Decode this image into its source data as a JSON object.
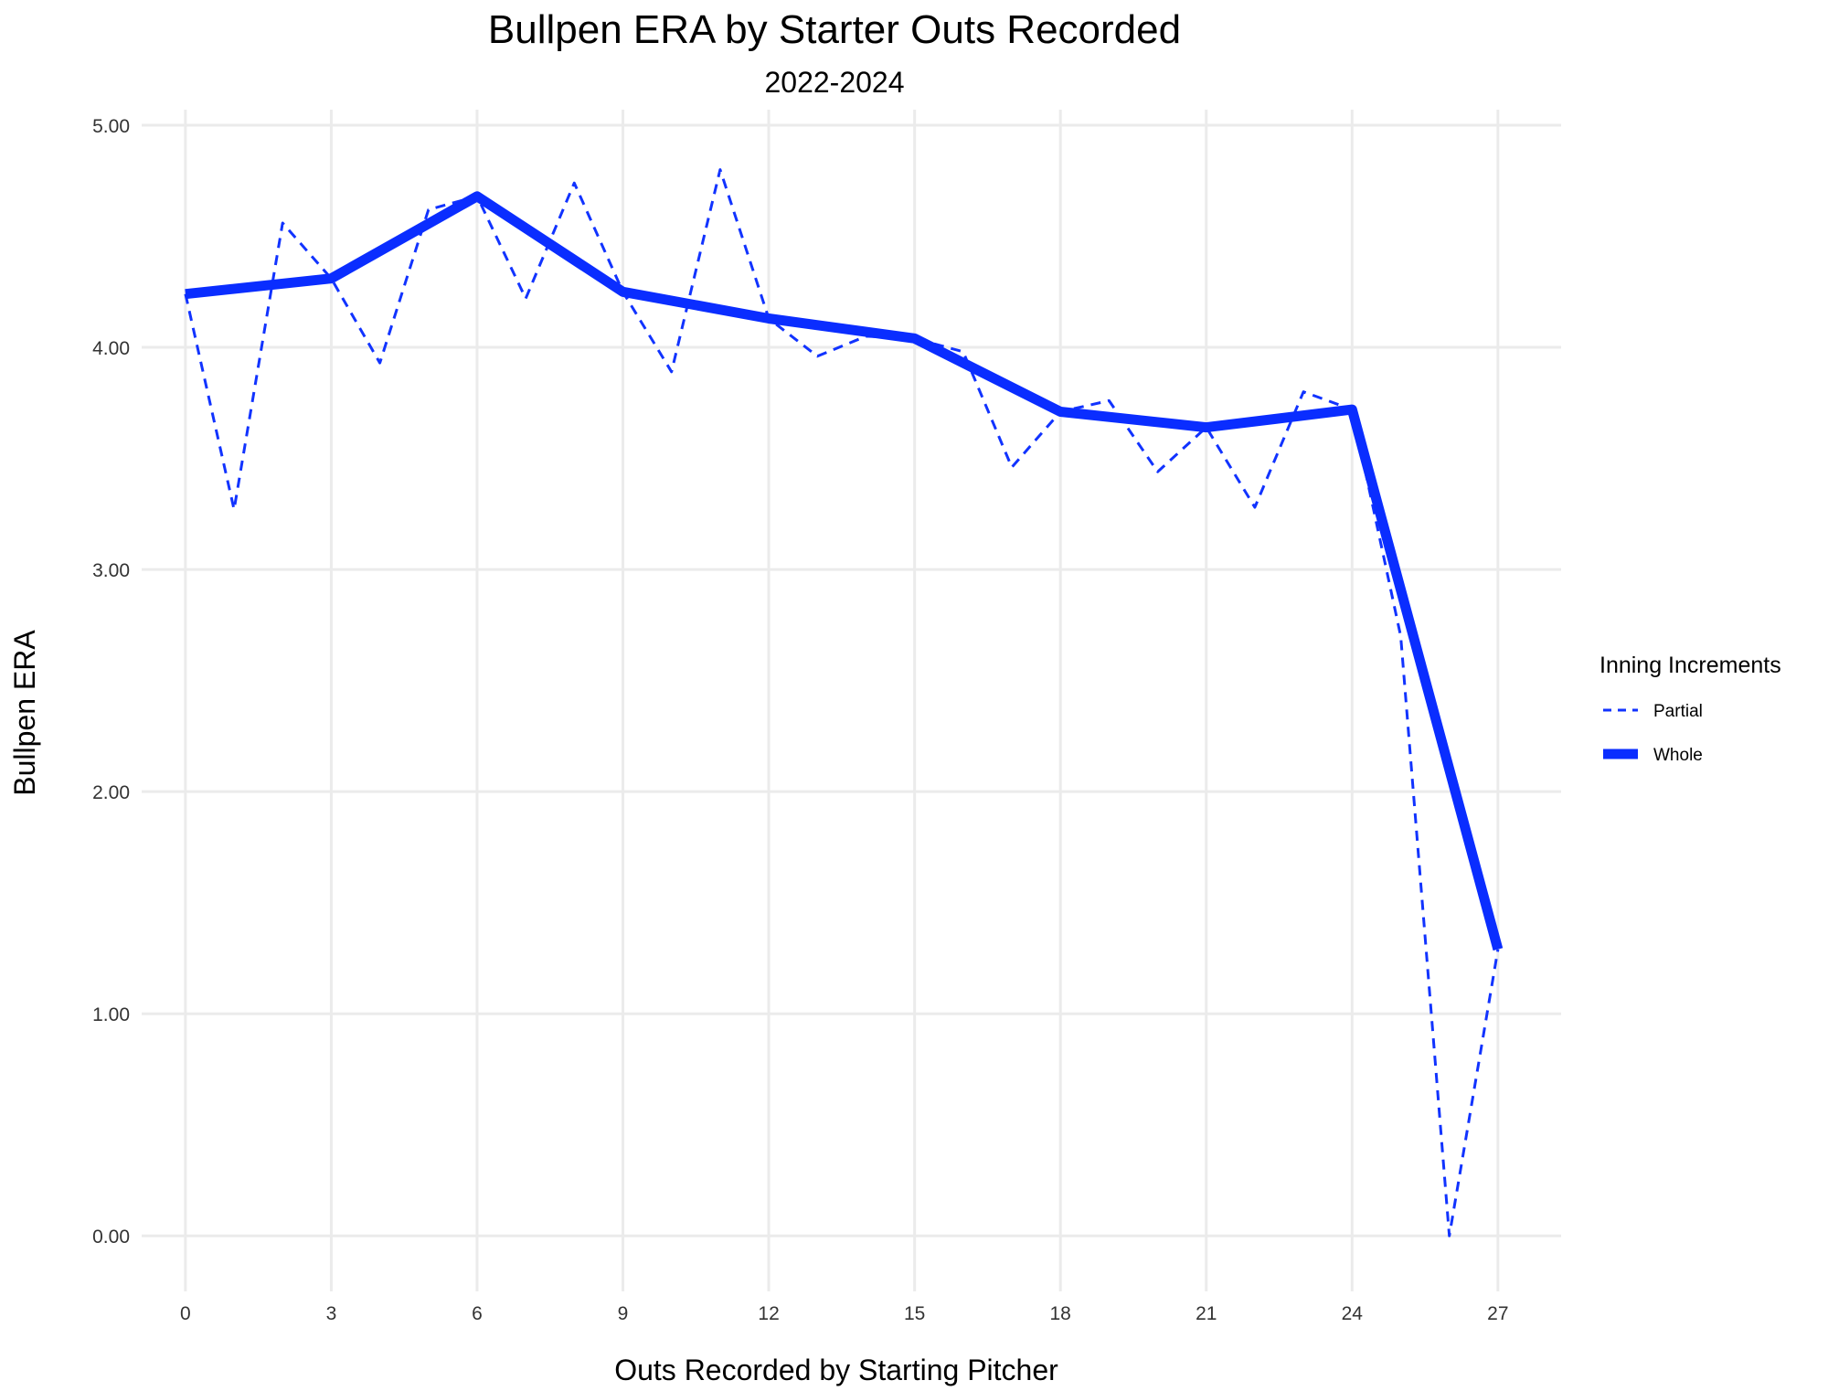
{
  "chart_data": {
    "type": "line",
    "title": "Bullpen ERA by Starter Outs Recorded",
    "subtitle": "2022-2024",
    "xlabel": "Outs Recorded by Starting Pitcher",
    "ylabel": "Bullpen ERA",
    "xlim": [
      -0.9,
      28.3
    ],
    "ylim": [
      -0.25,
      5.07
    ],
    "xticks": [
      0,
      3,
      6,
      9,
      12,
      15,
      18,
      21,
      24,
      27
    ],
    "yticks": [
      0.0,
      1.0,
      2.0,
      3.0,
      4.0,
      5.0
    ],
    "ytick_labels": [
      "0.00",
      "1.00",
      "2.00",
      "3.00",
      "4.00",
      "5.00"
    ],
    "grid": true,
    "legend": {
      "title": "Inning Increments",
      "position": "right"
    },
    "series": [
      {
        "name": "Partial",
        "style": "dashed",
        "color": "#1133ff",
        "x": [
          0,
          1,
          2,
          3,
          4,
          5,
          6,
          7,
          8,
          9,
          10,
          11,
          12,
          13,
          14,
          15,
          16,
          17,
          18,
          19,
          20,
          21,
          22,
          23,
          24,
          25,
          26,
          27
        ],
        "y": [
          4.24,
          3.27,
          4.56,
          4.31,
          3.93,
          4.62,
          4.68,
          4.22,
          4.74,
          4.25,
          3.89,
          4.8,
          4.13,
          3.96,
          4.05,
          4.04,
          3.98,
          3.46,
          3.71,
          3.76,
          3.44,
          3.64,
          3.28,
          3.8,
          3.72,
          2.7,
          0.0,
          1.29
        ]
      },
      {
        "name": "Whole",
        "style": "solid",
        "color": "#0a2dff",
        "x": [
          0,
          3,
          6,
          9,
          12,
          15,
          18,
          21,
          24,
          27
        ],
        "y": [
          4.24,
          4.31,
          4.68,
          4.25,
          4.13,
          4.04,
          3.71,
          3.64,
          3.72,
          1.29
        ]
      }
    ]
  }
}
